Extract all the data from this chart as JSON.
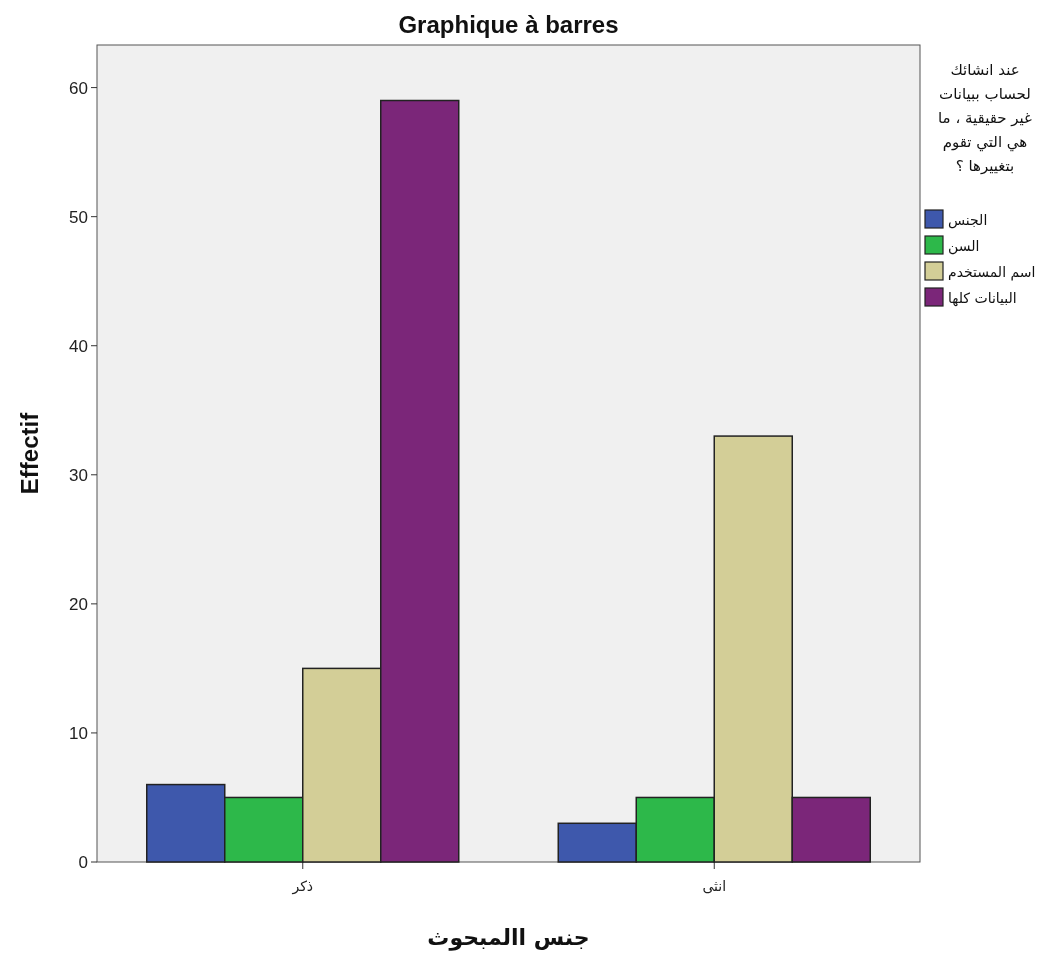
{
  "chart_data": {
    "type": "bar",
    "title": "Graphique à barres",
    "xlabel": "جنس االمبحوث",
    "ylabel": "Effectif",
    "legend_title": "عند انشائك لحساب ببيانات غير حقيقية ، ما هي التي تقوم بتغييرها ؟",
    "categories": [
      "ذكر",
      "انثى"
    ],
    "series": [
      {
        "name": "الجنس",
        "color": "#3e58ac",
        "values": [
          6,
          3
        ]
      },
      {
        "name": "السن",
        "color": "#2db84a",
        "values": [
          5,
          5
        ]
      },
      {
        "name": "اسم المستخدم",
        "color": "#d3ce97",
        "values": [
          15,
          33
        ]
      },
      {
        "name": "البيانات كلها",
        "color": "#7b2679",
        "values": [
          59,
          5
        ]
      }
    ],
    "ylim": [
      0,
      63.3
    ],
    "yticks": [
      0,
      10,
      20,
      30,
      40,
      50,
      60
    ],
    "grid": false,
    "legend": "right"
  }
}
